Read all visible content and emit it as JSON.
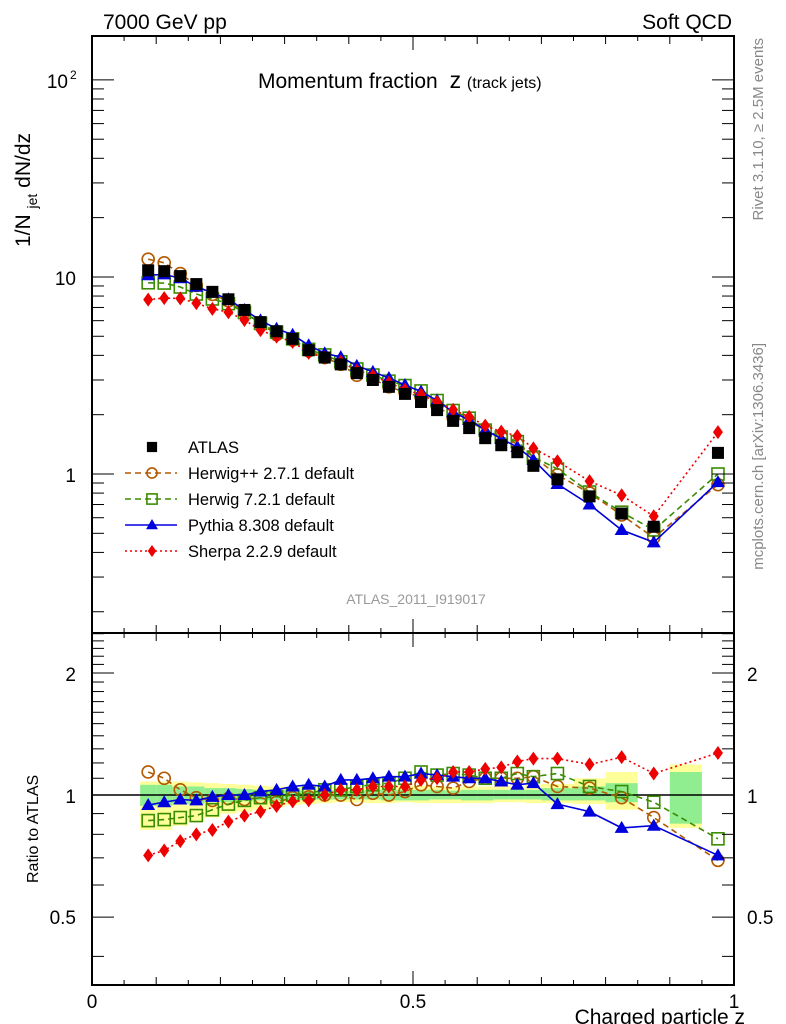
{
  "header": {
    "left_label": "7000 GeV pp",
    "right_label": "Soft QCD"
  },
  "side_labels": {
    "rivet": "Rivet 3.1.10, ≥ 2.5M events",
    "mcplots": "mcplots.cern.ch [arXiv:1306.3436]"
  },
  "chart_data": [
    {
      "type": "line",
      "panel": "main",
      "title": "Momentum fraction",
      "title_var": "z",
      "title_suffix": "(track jets)",
      "ylabel_parts": [
        "1/N",
        "jet",
        " dN/dz"
      ],
      "xlabel": "",
      "yscale": "log",
      "ylim": [
        0.156,
        167
      ],
      "xlim": [
        0,
        1
      ],
      "yticks_major": [
        {
          "value": 1,
          "label": "1"
        },
        {
          "value": 10,
          "label": "10"
        },
        {
          "value": 100,
          "label": "10",
          "sup": "2"
        }
      ],
      "analysis_label": "ATLAS_2011_I919017",
      "legend_position": "lower-left",
      "x": [
        0.0875,
        0.1125,
        0.1375,
        0.1625,
        0.1875,
        0.2125,
        0.2375,
        0.2625,
        0.2875,
        0.3125,
        0.3375,
        0.3625,
        0.3875,
        0.4125,
        0.4375,
        0.4625,
        0.4875,
        0.5125,
        0.5375,
        0.5625,
        0.5875,
        0.6125,
        0.6375,
        0.6625,
        0.6875,
        0.725,
        0.775,
        0.825,
        0.875,
        0.975
      ],
      "series": [
        {
          "name": "ATLAS",
          "color": "#000000",
          "marker": "square-filled",
          "line": "none",
          "values": [
            10.8,
            10.7,
            10.1,
            9.2,
            8.4,
            7.7,
            6.8,
            5.9,
            5.3,
            4.85,
            4.25,
            3.9,
            3.6,
            3.25,
            3.0,
            2.77,
            2.55,
            2.32,
            2.11,
            1.86,
            1.71,
            1.52,
            1.4,
            1.29,
            1.1,
            0.94,
            0.77,
            0.63,
            0.54,
            1.28
          ]
        },
        {
          "name": "Herwig++ 2.7.1 default",
          "color": "#b35900",
          "marker": "circle-open",
          "line": "dashed",
          "values": [
            12.3,
            11.8,
            10.4,
            9.06,
            8.15,
            7.55,
            6.63,
            5.81,
            5.09,
            4.78,
            4.21,
            3.9,
            3.6,
            3.17,
            3.03,
            2.77,
            2.6,
            2.46,
            2.22,
            1.93,
            1.85,
            1.67,
            1.54,
            1.42,
            1.22,
            0.99,
            0.8,
            0.62,
            0.475,
            0.883
          ]
        },
        {
          "name": "Herwig 7.2.1 default",
          "color": "#3a8c00",
          "marker": "square-open",
          "line": "dashed",
          "values": [
            9.34,
            9.31,
            8.89,
            8.19,
            7.73,
            7.32,
            6.6,
            5.81,
            5.25,
            4.85,
            4.29,
            4.02,
            3.71,
            3.41,
            3.18,
            2.96,
            2.81,
            2.64,
            2.36,
            2.1,
            1.92,
            1.67,
            1.54,
            1.46,
            1.22,
            1.06,
            0.81,
            0.64,
            0.52,
            1.0
          ]
        },
        {
          "name": "Pythia 8.308 default",
          "color": "#0000dd",
          "marker": "triangle-filled",
          "line": "solid",
          "values": [
            10.2,
            10.3,
            9.85,
            8.92,
            8.32,
            7.7,
            6.8,
            6.02,
            5.46,
            5.09,
            4.5,
            4.1,
            3.92,
            3.54,
            3.3,
            3.07,
            2.83,
            2.62,
            2.36,
            2.06,
            1.88,
            1.67,
            1.51,
            1.37,
            1.18,
            0.89,
            0.7,
            0.52,
            0.45,
            0.91
          ]
        },
        {
          "name": "Sherpa 2.2.9 default",
          "color": "#ee0000",
          "marker": "diamond-filled",
          "line": "dotted",
          "values": [
            7.67,
            7.81,
            7.78,
            7.36,
            6.89,
            6.62,
            6.05,
            5.37,
            4.98,
            4.68,
            4.12,
            3.9,
            3.71,
            3.35,
            3.15,
            2.91,
            2.68,
            2.53,
            2.32,
            2.12,
            1.95,
            1.76,
            1.64,
            1.56,
            1.35,
            1.16,
            0.92,
            0.78,
            0.61,
            1.63
          ]
        }
      ]
    },
    {
      "type": "line",
      "panel": "ratio",
      "ylabel": "Ratio to ATLAS",
      "xlabel": "Charged particle z",
      "yscale": "log",
      "ylim": [
        0.34,
        2.51
      ],
      "xlim": [
        0,
        1
      ],
      "xticks_major": [
        {
          "value": 0,
          "label": "0"
        },
        {
          "value": 0.5,
          "label": "0.5"
        },
        {
          "value": 1,
          "label": "1"
        }
      ],
      "yticks_major": [
        {
          "value": 0.5,
          "label": "0.5"
        },
        {
          "value": 1,
          "label": "1"
        },
        {
          "value": 2,
          "label": "2"
        }
      ],
      "reference_line": 1,
      "band_edges": [
        0.075,
        0.1,
        0.125,
        0.15,
        0.175,
        0.2,
        0.225,
        0.25,
        0.275,
        0.3,
        0.325,
        0.35,
        0.375,
        0.4,
        0.425,
        0.45,
        0.475,
        0.5,
        0.525,
        0.55,
        0.575,
        0.6,
        0.625,
        0.65,
        0.675,
        0.7,
        0.75,
        0.8,
        0.85,
        0.9,
        0.95,
        1.0
      ],
      "band_stat": {
        "color": "#90ee90",
        "low": [
          0.94,
          0.94,
          0.95,
          0.95,
          0.96,
          0.96,
          0.965,
          0.97,
          0.97,
          0.97,
          0.975,
          0.975,
          0.975,
          0.975,
          0.975,
          0.97,
          0.97,
          0.97,
          0.975,
          0.975,
          0.97,
          0.97,
          0.975,
          0.975,
          0.975,
          0.97,
          0.97,
          0.96,
          null,
          0.85
        ],
        "high": [
          1.06,
          1.06,
          1.05,
          1.05,
          1.04,
          1.04,
          1.035,
          1.03,
          1.03,
          1.03,
          1.025,
          1.025,
          1.025,
          1.025,
          1.03,
          1.03,
          1.03,
          1.03,
          1.03,
          1.025,
          1.03,
          1.03,
          1.03,
          1.03,
          1.03,
          1.04,
          1.05,
          1.07,
          null,
          1.14
        ]
      },
      "band_total": {
        "color": "#ffff99",
        "low": [
          0.82,
          0.82,
          0.84,
          0.86,
          0.88,
          0.9,
          0.91,
          0.92,
          0.935,
          0.945,
          0.95,
          0.955,
          0.96,
          0.96,
          0.955,
          0.955,
          0.96,
          0.955,
          0.955,
          0.955,
          0.955,
          0.955,
          0.96,
          0.96,
          0.955,
          0.955,
          0.95,
          0.92,
          null,
          0.83
        ],
        "high": [
          1.08,
          1.08,
          1.08,
          1.075,
          1.07,
          1.065,
          1.06,
          1.055,
          1.05,
          1.045,
          1.045,
          1.045,
          1.045,
          1.045,
          1.05,
          1.05,
          1.055,
          1.055,
          1.05,
          1.045,
          1.05,
          1.05,
          1.05,
          1.05,
          1.06,
          1.065,
          1.1,
          1.14,
          null,
          1.19
        ]
      },
      "series": [
        {
          "name": "Herwig++ 2.7.1 default",
          "color": "#b35900",
          "marker": "circle-open",
          "line": "dashed",
          "values": [
            1.14,
            1.1,
            1.03,
            0.985,
            0.97,
            0.98,
            0.975,
            0.985,
            0.96,
            0.985,
            0.99,
            1.0,
            1.0,
            0.975,
            1.01,
            1.0,
            1.02,
            1.06,
            1.05,
            1.04,
            1.08,
            1.1,
            1.1,
            1.1,
            1.11,
            1.05,
            1.04,
            0.985,
            0.88,
            0.69
          ]
        },
        {
          "name": "Herwig 7.2.1 default",
          "color": "#3a8c00",
          "marker": "square-open",
          "line": "dashed",
          "values": [
            0.865,
            0.87,
            0.88,
            0.89,
            0.92,
            0.95,
            0.97,
            0.985,
            0.99,
            1.0,
            1.01,
            1.03,
            1.03,
            1.05,
            1.06,
            1.07,
            1.1,
            1.14,
            1.12,
            1.13,
            1.12,
            1.1,
            1.1,
            1.13,
            1.11,
            1.13,
            1.05,
            1.02,
            0.96,
            0.78
          ]
        },
        {
          "name": "Pythia 8.308 default",
          "color": "#0000dd",
          "marker": "triangle-filled",
          "line": "solid",
          "values": [
            0.945,
            0.96,
            0.975,
            0.97,
            0.99,
            1.0,
            1.0,
            1.02,
            1.03,
            1.05,
            1.06,
            1.05,
            1.09,
            1.09,
            1.1,
            1.11,
            1.11,
            1.13,
            1.12,
            1.11,
            1.1,
            1.1,
            1.08,
            1.06,
            1.07,
            0.95,
            0.91,
            0.83,
            0.84,
            0.71
          ]
        },
        {
          "name": "Sherpa 2.2.9 default",
          "color": "#ee0000",
          "marker": "diamond-filled",
          "line": "dotted",
          "values": [
            0.71,
            0.73,
            0.77,
            0.8,
            0.82,
            0.86,
            0.89,
            0.91,
            0.94,
            0.965,
            0.97,
            1.0,
            1.03,
            1.03,
            1.05,
            1.05,
            1.05,
            1.09,
            1.1,
            1.14,
            1.14,
            1.16,
            1.17,
            1.21,
            1.23,
            1.23,
            1.19,
            1.24,
            1.13,
            1.27
          ]
        }
      ]
    }
  ]
}
